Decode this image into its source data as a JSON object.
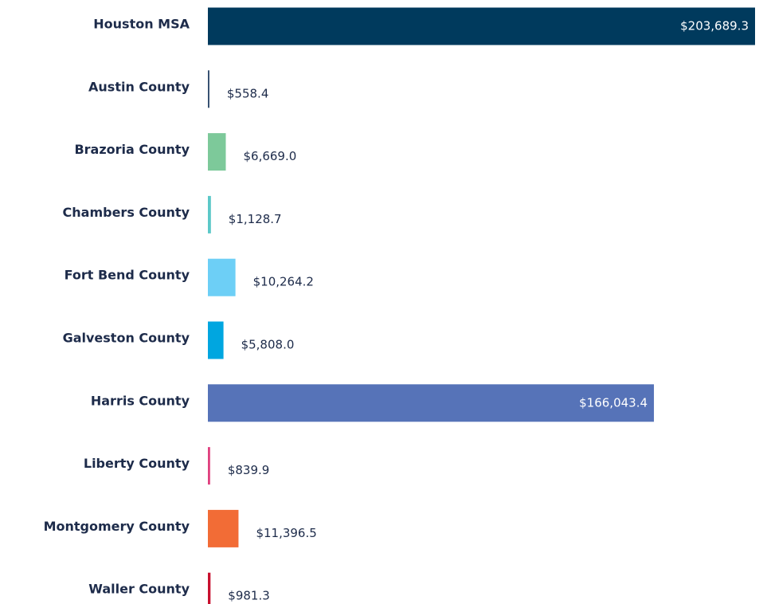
{
  "chart_data": {
    "type": "bar",
    "orientation": "horizontal",
    "categories": [
      "Houston MSA",
      "Austin County",
      "Brazoria County",
      "Chambers County",
      "Fort Bend County",
      "Galveston County",
      "Harris County",
      "Liberty County",
      "Montgomery County",
      "Waller County"
    ],
    "values": [
      203689.3,
      558.4,
      6669.0,
      1128.7,
      10264.2,
      5808.0,
      166043.4,
      839.9,
      11396.5,
      981.3
    ],
    "value_labels": [
      "$203,689.3",
      "$558.4",
      "$6,669.0",
      "$1,128.7",
      "$10,264.2",
      "$5,808.0",
      "$166,043.4",
      "$839.9",
      "$11,396.5",
      "$981.3"
    ],
    "colors": [
      "#003a5d",
      "#2e4a6b",
      "#7dc99a",
      "#5bc8c8",
      "#6dcff6",
      "#00a6e0",
      "#5673b8",
      "#e0407f",
      "#f26c36",
      "#c8102e"
    ]
  }
}
